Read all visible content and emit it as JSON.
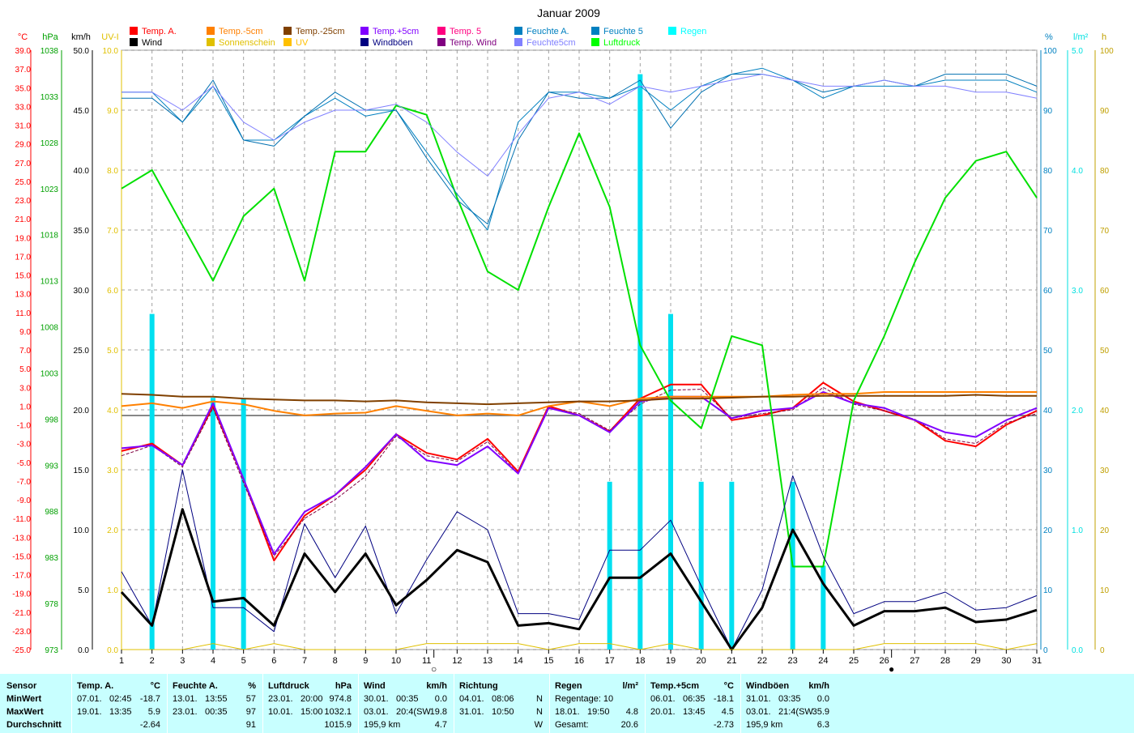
{
  "chart_data": {
    "type": "line",
    "title": "Januar 2009",
    "x": [
      1,
      2,
      3,
      4,
      5,
      6,
      7,
      8,
      9,
      10,
      11,
      12,
      13,
      14,
      15,
      16,
      17,
      18,
      19,
      20,
      21,
      22,
      23,
      24,
      25,
      26,
      27,
      28,
      29,
      30,
      31
    ],
    "legend": [
      {
        "name": "Temp. A.",
        "color": "#ff0000"
      },
      {
        "name": "Wind",
        "color": "#000000"
      },
      {
        "name": "Temp.-5cm",
        "color": "#ff8000"
      },
      {
        "name": "Sonnenschein",
        "color": "#e0c000"
      },
      {
        "name": "Temp.-25cm",
        "color": "#804000"
      },
      {
        "name": "UV",
        "color": "#ffc000"
      },
      {
        "name": "Temp.+5cm",
        "color": "#8000ff"
      },
      {
        "name": "Windböen",
        "color": "#000080"
      },
      {
        "name": "Temp. 5",
        "color": "#ff0080"
      },
      {
        "name": "Temp. Wind",
        "color": "#800080"
      },
      {
        "name": "Feuchte A.",
        "color": "#0080c0"
      },
      {
        "name": "Feuchte5cm",
        "color": "#8080ff"
      },
      {
        "name": "Feuchte 5",
        "color": "#0080c0"
      },
      {
        "name": "Luftdruck",
        "color": "#00ff00"
      },
      {
        "name": "Regen",
        "color": "#00ffff"
      }
    ],
    "axes": {
      "temp": {
        "unit": "°C",
        "range": [
          -25,
          39
        ],
        "color": "#ff0000",
        "ticks": [
          "39.0",
          "37.0",
          "35.0",
          "33.0",
          "31.0",
          "29.0",
          "27.0",
          "25.0",
          "23.0",
          "21.0",
          "19.0",
          "17.0",
          "15.0",
          "13.0",
          "11.0",
          "9.0",
          "7.0",
          "5.0",
          "3.0",
          "1.0",
          "-1.0",
          "-3.0",
          "-5.0",
          "-7.0",
          "-9.0",
          "-11.0",
          "-13.0",
          "-15.0",
          "-17.0",
          "-19.0",
          "-21.0",
          "-23.0",
          "-25.0"
        ]
      },
      "pressure": {
        "unit": "hPa",
        "range": [
          973,
          1038
        ],
        "color": "#00a000",
        "ticks": [
          "1038",
          "1033",
          "1028",
          "1023",
          "1018",
          "1013",
          "1008",
          "1003",
          "998",
          "993",
          "988",
          "983",
          "978",
          "973"
        ]
      },
      "wind": {
        "unit": "km/h",
        "range": [
          0,
          50
        ],
        "color": "#000000",
        "ticks": [
          "50.0",
          "45.0",
          "40.0",
          "35.0",
          "30.0",
          "25.0",
          "20.0",
          "15.0",
          "10.0",
          "5.0",
          "0.0"
        ]
      },
      "uv": {
        "unit": "UV-I",
        "range": [
          0,
          10
        ],
        "color": "#e0c000",
        "ticks": [
          "10.0",
          "9.0",
          "8.0",
          "7.0",
          "6.0",
          "5.0",
          "4.0",
          "3.0",
          "2.0",
          "1.0",
          "0.0"
        ]
      },
      "humidity": {
        "unit": "%",
        "range": [
          0,
          100
        ],
        "color": "#0080c0",
        "ticks": [
          "100",
          "90",
          "80",
          "70",
          "60",
          "50",
          "40",
          "30",
          "20",
          "10",
          "0"
        ]
      },
      "rain": {
        "unit": "l/m²",
        "range": [
          0,
          5
        ],
        "color": "#00e0e0",
        "ticks": [
          "5.0",
          "4.0",
          "3.0",
          "2.0",
          "1.0",
          "0.0"
        ]
      },
      "sun": {
        "unit": "h",
        "range": [
          0,
          100
        ],
        "color": "#c0a000",
        "ticks": [
          "100",
          "90",
          "80",
          "70",
          "60",
          "50",
          "40",
          "30",
          "20",
          "10",
          "0"
        ]
      }
    },
    "series": [
      {
        "name": "Temp. A.",
        "axis": "temp",
        "color": "#ff0000",
        "width": 2,
        "values": [
          -3.8,
          -3.0,
          -5.3,
          1.0,
          -6.8,
          -15.5,
          -10.7,
          -8.5,
          -5.8,
          -2.0,
          -4.0,
          -4.7,
          -2.5,
          -6.0,
          1.0,
          0.0,
          -1.7,
          1.8,
          3.3,
          3.3,
          -0.5,
          0.0,
          0.8,
          3.5,
          1.5,
          0.5,
          -0.5,
          -2.7,
          -3.3,
          -1.0,
          0.5
        ]
      },
      {
        "name": "Temp. 5",
        "axis": "temp",
        "color": "#800040",
        "width": 1,
        "dash": "4,2",
        "values": [
          -4.3,
          -3.2,
          -5.5,
          0.8,
          -7.2,
          -15.0,
          -11.0,
          -9.0,
          -6.5,
          -2.2,
          -4.3,
          -4.9,
          -2.8,
          -6.2,
          0.8,
          0.2,
          -1.6,
          1.2,
          2.7,
          2.8,
          -0.3,
          0.2,
          0.6,
          3.0,
          1.2,
          0.5,
          -0.4,
          -2.5,
          -3.0,
          -0.8,
          0.2
        ]
      },
      {
        "name": "Temp.+5cm",
        "axis": "temp",
        "color": "#8000ff",
        "width": 2,
        "values": [
          -3.5,
          -3.2,
          -5.3,
          1.3,
          -6.8,
          -14.8,
          -10.3,
          -8.5,
          -5.5,
          -2.0,
          -4.8,
          -5.3,
          -3.3,
          -6.2,
          0.8,
          0.0,
          -1.8,
          1.5,
          2.0,
          2.0,
          -0.3,
          0.5,
          0.8,
          2.5,
          1.3,
          0.8,
          -0.5,
          -1.8,
          -2.3,
          -0.5,
          0.8
        ]
      },
      {
        "name": "Temp.-5cm",
        "axis": "temp",
        "color": "#ff8000",
        "width": 2,
        "values": [
          1.0,
          1.3,
          0.8,
          1.5,
          1.2,
          0.5,
          0.0,
          0.2,
          0.3,
          1.0,
          0.5,
          0.0,
          0.2,
          0.0,
          1.0,
          1.5,
          1.0,
          1.8,
          2.0,
          2.0,
          2.0,
          2.0,
          2.2,
          2.3,
          2.3,
          2.5,
          2.5,
          2.5,
          2.5,
          2.5,
          2.5
        ]
      },
      {
        "name": "Temp.-25cm",
        "axis": "temp",
        "color": "#804000",
        "width": 2,
        "values": [
          2.3,
          2.2,
          2.0,
          2.0,
          1.8,
          1.7,
          1.6,
          1.6,
          1.5,
          1.6,
          1.4,
          1.3,
          1.2,
          1.3,
          1.4,
          1.5,
          1.5,
          1.6,
          1.8,
          1.8,
          1.9,
          2.0,
          2.0,
          2.1,
          2.1,
          2.1,
          2.1,
          2.1,
          2.2,
          2.1,
          2.1
        ]
      },
      {
        "name": "Luftdruck",
        "axis": "pressure",
        "color": "#00e000",
        "width": 2,
        "values": [
          1023,
          1025,
          1019,
          1013,
          1020,
          1023,
          1013,
          1027,
          1027,
          1032,
          1031,
          1022,
          1014,
          1012,
          1021,
          1029,
          1021,
          1006,
          1000,
          997,
          1007,
          1006,
          982,
          982,
          1000,
          1007,
          1015,
          1022,
          1026,
          1027,
          1022
        ]
      },
      {
        "name": "Feuchte A.",
        "axis": "humidity",
        "color": "#0080c0",
        "width": 1,
        "values": [
          93,
          93,
          88,
          94,
          85,
          85,
          89,
          92,
          89,
          90,
          83,
          76,
          70,
          88,
          93,
          93,
          92,
          94,
          90,
          94,
          96,
          97,
          95,
          92,
          94,
          94,
          94,
          95,
          95,
          95,
          93
        ]
      },
      {
        "name": "Feuchte 5",
        "axis": "humidity",
        "color": "#0070b0",
        "width": 1,
        "values": [
          92,
          92,
          88,
          95,
          85,
          84,
          89,
          93,
          90,
          90,
          82,
          75,
          71,
          85,
          93,
          92,
          92,
          95,
          87,
          93,
          96,
          96,
          95,
          93,
          94,
          95,
          94,
          96,
          96,
          96,
          94
        ]
      },
      {
        "name": "Feuchte5cm",
        "axis": "humidity",
        "color": "#8080ff",
        "width": 1,
        "values": [
          93,
          93,
          90,
          94,
          88,
          85,
          88,
          90,
          90,
          91,
          88,
          83,
          79,
          86,
          92,
          93,
          91,
          94,
          93,
          94,
          95,
          96,
          95,
          94,
          94,
          95,
          94,
          94,
          93,
          93,
          92
        ]
      },
      {
        "name": "Windböen",
        "axis": "wind",
        "color": "#000080",
        "width": 1,
        "values": [
          6.5,
          2.0,
          15.0,
          3.5,
          3.5,
          1.5,
          10.5,
          6.0,
          10.3,
          3.0,
          7.5,
          11.5,
          10.0,
          3.0,
          3.0,
          2.5,
          8.3,
          8.3,
          10.8,
          5.3,
          0.0,
          5.0,
          14.5,
          7.8,
          3.0,
          4.0,
          4.0,
          4.8,
          3.3,
          3.5,
          4.5
        ]
      },
      {
        "name": "Wind",
        "axis": "wind",
        "color": "#000000",
        "width": 3,
        "values": [
          4.8,
          2.0,
          11.7,
          4.0,
          4.3,
          2.0,
          8.0,
          4.8,
          8.0,
          3.7,
          5.8,
          8.3,
          7.3,
          2.0,
          2.2,
          1.7,
          6.0,
          6.0,
          8.0,
          4.0,
          0.0,
          3.5,
          10.0,
          5.5,
          2.0,
          3.2,
          3.2,
          3.5,
          2.3,
          2.5,
          3.3
        ]
      },
      {
        "name": "Sonnenschein",
        "axis": "sun",
        "color": "#e0c000",
        "width": 1,
        "values": [
          0,
          0,
          0,
          1,
          0,
          1,
          0,
          0,
          0,
          0,
          1,
          1,
          1,
          1,
          0,
          1,
          1,
          0,
          1,
          0,
          0,
          0,
          0,
          0,
          0,
          1,
          1,
          1,
          1,
          0,
          1
        ]
      },
      {
        "name": "Regen",
        "axis": "rain",
        "type": "bar",
        "color": "#00e0f0",
        "values": [
          0,
          2.8,
          0,
          2.1,
          2.1,
          0,
          0,
          0,
          0,
          0,
          0,
          0,
          0,
          0,
          0,
          0,
          1.4,
          4.8,
          2.8,
          1.4,
          1.4,
          0,
          1.4,
          0.7,
          0,
          0,
          0,
          0,
          0,
          0,
          0
        ]
      }
    ],
    "moon_markers": [
      {
        "day": 11,
        "symbol": "○"
      },
      {
        "day": 26,
        "symbol": "●"
      }
    ],
    "grid": true
  },
  "summary": {
    "sensor": {
      "title": "Sensor",
      "rows": [
        "MinWert",
        "MaxWert",
        "Durchschnitt"
      ]
    },
    "temp_a": {
      "title": "Temp. A.",
      "unit": "°C",
      "rows": [
        [
          "07.01.",
          "02:45",
          "-18.7"
        ],
        [
          "19.01.",
          "13:35",
          "5.9"
        ],
        [
          "",
          "",
          "-2.64"
        ]
      ]
    },
    "feuchte_a": {
      "title": "Feuchte A.",
      "unit": "%",
      "rows": [
        [
          "13.01.",
          "13:55",
          "57"
        ],
        [
          "23.01.",
          "00:35",
          "97"
        ],
        [
          "",
          "",
          "91"
        ]
      ]
    },
    "luftdruck": {
      "title": "Luftdruck",
      "unit": "hPa",
      "rows": [
        [
          "23.01.",
          "20:00",
          "974.8"
        ],
        [
          "10.01.",
          "15:00",
          "1032.1"
        ],
        [
          "",
          "",
          "1015.9"
        ]
      ]
    },
    "wind": {
      "title": "Wind",
      "unit": "km/h",
      "rows": [
        [
          "30.01.",
          "00:35",
          "0.0"
        ],
        [
          "03.01.",
          "20:4(SW",
          "19.8"
        ],
        [
          "195,9 km",
          "",
          "4.7"
        ]
      ]
    },
    "richtung": {
      "title": "Richtung",
      "rows": [
        [
          "04.01.",
          "08:06",
          "N"
        ],
        [
          "31.01.",
          "10:50",
          "N"
        ],
        [
          "",
          "",
          "W"
        ]
      ]
    },
    "regen": {
      "title": "Regen",
      "unit": "l/m²",
      "rows": [
        [
          "Regentage: 10",
          "",
          ""
        ],
        [
          "18.01.",
          "19:50",
          "4.8"
        ],
        [
          "Gesamt:",
          "",
          "20.6"
        ]
      ]
    },
    "temp_p5": {
      "title": "Temp.+5cm",
      "unit": "°C",
      "rows": [
        [
          "06.01.",
          "06:35",
          "-18.1"
        ],
        [
          "20.01.",
          "13:45",
          "4.5"
        ],
        [
          "",
          "",
          "-2.73"
        ]
      ]
    },
    "windboeen": {
      "title": "Windböen",
      "unit": "km/h",
      "rows": [
        [
          "31.01.",
          "03:35",
          "0.0"
        ],
        [
          "03.01.",
          "21:4(SW",
          "35.9"
        ],
        [
          "195,9 km",
          "",
          "6.3"
        ]
      ]
    }
  }
}
